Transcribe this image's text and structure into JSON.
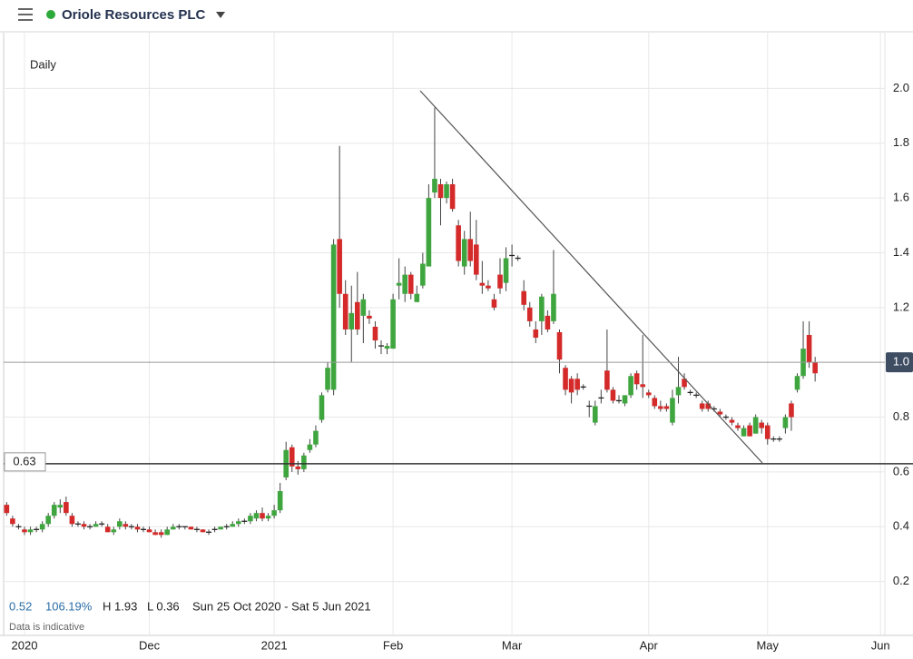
{
  "chart_data": {
    "type": "candlestick",
    "title": "Oriole Resources PLC",
    "subtitle": "Daily",
    "up_color": "#3fa63f",
    "down_color": "#d42a2a",
    "grid": true,
    "ylim": [
      0,
      2.2
    ],
    "yticks": [
      0.2,
      0.4,
      0.6,
      0.8,
      1.2,
      1.4,
      1.6,
      1.8,
      {
        "value": 2,
        "label": "2.0"
      }
    ],
    "last_price": {
      "value": 1,
      "label": "1.0"
    },
    "hline": 0.63,
    "summary": {
      "change": "0.52",
      "change_pct": "106.19%",
      "high": "H 1.93",
      "low": "L 0.36",
      "range": "Sun 25 Oct 2020 - Sat 5 Jun 2021",
      "note": "Data is indicative"
    },
    "categories": [
      null,
      null,
      null,
      "2020",
      null,
      null,
      null,
      null,
      null,
      null,
      null,
      null,
      null,
      null,
      null,
      null,
      null,
      null,
      null,
      null,
      null,
      null,
      null,
      null,
      "Dec",
      null,
      null,
      null,
      null,
      null,
      null,
      null,
      null,
      null,
      null,
      null,
      null,
      null,
      null,
      null,
      null,
      null,
      null,
      null,
      null,
      "2021",
      null,
      null,
      null,
      null,
      null,
      null,
      null,
      null,
      null,
      null,
      null,
      null,
      null,
      null,
      null,
      null,
      null,
      null,
      null,
      "Feb",
      null,
      null,
      null,
      null,
      null,
      null,
      null,
      null,
      null,
      null,
      null,
      null,
      null,
      null,
      null,
      null,
      null,
      null,
      null,
      "Mar",
      null,
      null,
      null,
      null,
      null,
      null,
      null,
      null,
      null,
      null,
      null,
      null,
      null,
      null,
      null,
      null,
      null,
      null,
      null,
      null,
      null,
      null,
      "Apr",
      null,
      null,
      null,
      null,
      null,
      null,
      null,
      null,
      null,
      null,
      null,
      null,
      null,
      null,
      null,
      null,
      null,
      null,
      null,
      "May",
      null,
      null,
      null,
      null,
      null,
      null,
      null,
      null,
      null,
      null,
      null,
      null,
      null,
      null,
      null,
      null,
      null,
      null,
      "Jun"
    ],
    "open": [
      0.48,
      0.43,
      0.4,
      0.39,
      0.38,
      0.39,
      0.39,
      0.41,
      0.44,
      0.47,
      0.49,
      0.44,
      0.41,
      0.41,
      0.4,
      0.4,
      0.41,
      0.4,
      0.38,
      0.4,
      0.41,
      0.4,
      0.4,
      0.39,
      0.39,
      0.38,
      0.38,
      0.37,
      0.39,
      0.4,
      0.4,
      0.4,
      0.39,
      0.39,
      0.38,
      0.39,
      0.39,
      0.4,
      0.4,
      0.41,
      0.42,
      0.42,
      0.43,
      0.45,
      0.43,
      0.44,
      0.46,
      0.58,
      0.69,
      0.62,
      0.61,
      0.68,
      0.7,
      0.79,
      0.9,
      0.9,
      1.45,
      1.25,
      1.12,
      1.22,
      1.17,
      1.17,
      1.13,
      1.06,
      1.05,
      1.05,
      1.28,
      1.25,
      1.32,
      1.22,
      1.28,
      1.35,
      1.62,
      1.65,
      1.6,
      1.65,
      1.5,
      1.35,
      1.45,
      1.43,
      1.29,
      1.28,
      1.23,
      1.32,
      1.29,
      1.39,
      1.38,
      1.26,
      1.2,
      1.12,
      1.15,
      1.17,
      1.15,
      1.11,
      0.98,
      0.94,
      0.94,
      0.91,
      0.84,
      0.78,
      0.87,
      0.97,
      0.9,
      0.86,
      0.85,
      0.88,
      0.96,
      0.92,
      0.89,
      0.87,
      0.84,
      0.84,
      0.78,
      0.88,
      0.94,
      0.89,
      0.88,
      0.85,
      0.85,
      0.83,
      0.82,
      0.8,
      0.79,
      0.77,
      0.73,
      0.77,
      0.74,
      0.78,
      0.77,
      0.72,
      0.72,
      0.76,
      0.85,
      0.9,
      0.95,
      1.1,
      1.0,
      null,
      null,
      null,
      null,
      null,
      null,
      null,
      null,
      null,
      null,
      null
    ],
    "high": [
      0.49,
      0.44,
      0.41,
      0.4,
      0.4,
      0.4,
      0.42,
      0.45,
      0.49,
      0.5,
      0.51,
      0.45,
      0.42,
      0.42,
      0.41,
      0.42,
      0.42,
      0.41,
      0.4,
      0.43,
      0.42,
      0.41,
      0.41,
      0.4,
      0.4,
      0.39,
      0.39,
      0.4,
      0.41,
      0.41,
      0.4,
      0.4,
      0.4,
      0.39,
      0.39,
      0.4,
      0.4,
      0.41,
      0.42,
      0.43,
      0.43,
      0.45,
      0.46,
      0.47,
      0.45,
      0.48,
      0.56,
      0.71,
      0.7,
      0.64,
      0.67,
      0.72,
      0.77,
      0.89,
      1.0,
      1.45,
      1.79,
      1.3,
      1.28,
      1.33,
      1.25,
      1.19,
      1.15,
      1.08,
      1.07,
      1.25,
      1.38,
      1.35,
      1.33,
      1.28,
      1.4,
      1.65,
      1.93,
      1.67,
      1.66,
      1.67,
      1.52,
      1.48,
      1.55,
      1.52,
      1.37,
      1.3,
      1.25,
      1.38,
      1.42,
      1.43,
      1.39,
      1.3,
      1.22,
      1.15,
      1.25,
      1.19,
      1.41,
      1.12,
      0.99,
      0.95,
      0.96,
      0.92,
      0.86,
      0.86,
      0.9,
      1.12,
      0.91,
      0.88,
      0.88,
      0.96,
      0.97,
      1.1,
      0.9,
      0.88,
      0.86,
      0.85,
      0.9,
      1.02,
      0.96,
      0.9,
      0.89,
      0.86,
      0.86,
      0.84,
      0.83,
      0.81,
      0.8,
      0.78,
      0.77,
      0.78,
      0.81,
      0.79,
      0.78,
      0.73,
      0.73,
      0.81,
      0.86,
      0.96,
      1.15,
      1.15,
      1.02,
      null,
      null,
      null,
      null,
      null,
      null,
      null,
      null,
      null,
      null,
      null
    ],
    "low": [
      0.44,
      0.4,
      0.39,
      0.37,
      0.37,
      0.38,
      0.38,
      0.4,
      0.43,
      0.45,
      0.44,
      0.4,
      0.4,
      0.39,
      0.39,
      0.4,
      0.4,
      0.38,
      0.37,
      0.39,
      0.39,
      0.39,
      0.38,
      0.38,
      0.38,
      0.37,
      0.36,
      0.37,
      0.39,
      0.39,
      0.39,
      0.39,
      0.38,
      0.38,
      0.37,
      0.38,
      0.39,
      0.39,
      0.4,
      0.4,
      0.41,
      0.41,
      0.42,
      0.42,
      0.42,
      0.43,
      0.45,
      0.57,
      0.6,
      0.59,
      0.6,
      0.67,
      0.69,
      0.78,
      0.89,
      0.88,
      1.2,
      1.1,
      1.0,
      1.1,
      1.07,
      1.14,
      1.05,
      1.03,
      1.03,
      1.05,
      1.23,
      1.22,
      1.23,
      1.22,
      1.27,
      1.35,
      1.6,
      1.5,
      1.58,
      1.55,
      1.35,
      1.32,
      1.35,
      1.3,
      1.25,
      1.26,
      1.19,
      1.25,
      1.26,
      1.35,
      1.37,
      1.19,
      1.13,
      1.07,
      1.1,
      1.11,
      1.14,
      0.96,
      0.88,
      0.85,
      0.88,
      0.9,
      0.8,
      0.77,
      0.85,
      0.89,
      0.85,
      0.85,
      0.84,
      0.87,
      0.9,
      0.87,
      0.87,
      0.83,
      0.82,
      0.82,
      0.77,
      0.85,
      0.9,
      0.88,
      0.87,
      0.82,
      0.82,
      0.82,
      0.8,
      0.79,
      0.77,
      0.75,
      0.73,
      0.73,
      0.74,
      0.74,
      0.7,
      0.71,
      0.71,
      0.74,
      0.75,
      0.89,
      0.94,
      0.98,
      0.93,
      null,
      null,
      null,
      null,
      null,
      null,
      null,
      null,
      null,
      null,
      null
    ],
    "close": [
      0.45,
      0.41,
      0.4,
      0.38,
      0.39,
      0.39,
      0.41,
      0.44,
      0.48,
      0.48,
      0.45,
      0.41,
      0.41,
      0.4,
      0.4,
      0.41,
      0.41,
      0.38,
      0.39,
      0.42,
      0.4,
      0.4,
      0.39,
      0.39,
      0.38,
      0.37,
      0.37,
      0.39,
      0.4,
      0.4,
      0.4,
      0.39,
      0.39,
      0.38,
      0.38,
      0.39,
      0.4,
      0.4,
      0.41,
      0.42,
      0.42,
      0.44,
      0.45,
      0.43,
      0.44,
      0.46,
      0.53,
      0.68,
      0.62,
      0.61,
      0.66,
      0.7,
      0.75,
      0.88,
      0.98,
      1.43,
      1.25,
      1.12,
      1.18,
      1.12,
      1.23,
      1.16,
      1.08,
      1.06,
      1.06,
      1.23,
      1.29,
      1.32,
      1.25,
      1.25,
      1.36,
      1.6,
      1.67,
      1.6,
      1.65,
      1.56,
      1.37,
      1.45,
      1.37,
      1.32,
      1.28,
      1.27,
      1.2,
      1.27,
      1.38,
      1.39,
      1.38,
      1.21,
      1.15,
      1.09,
      1.24,
      1.12,
      1.25,
      1.01,
      0.9,
      0.89,
      0.9,
      0.91,
      0.84,
      0.84,
      0.87,
      0.9,
      0.86,
      0.86,
      0.88,
      0.95,
      0.92,
      0.91,
      0.88,
      0.84,
      0.83,
      0.83,
      0.87,
      0.91,
      0.91,
      0.89,
      0.88,
      0.83,
      0.83,
      0.83,
      0.81,
      0.8,
      0.78,
      0.76,
      0.76,
      0.73,
      0.8,
      0.76,
      0.72,
      0.72,
      0.72,
      0.8,
      0.8,
      0.95,
      1.05,
      1.0,
      0.96,
      null,
      null,
      null,
      null,
      null,
      null,
      null,
      null,
      null,
      null,
      null
    ]
  }
}
